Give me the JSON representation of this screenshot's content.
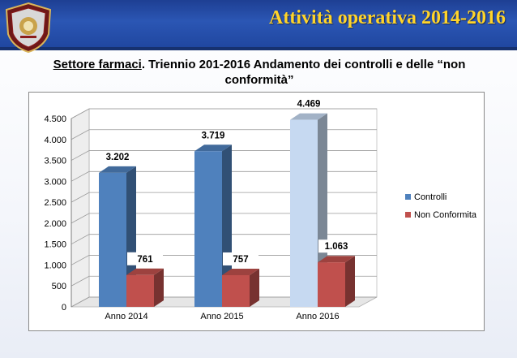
{
  "header": {
    "title": "Attività operativa 2014-2016",
    "logo_icon": "police-shield-icon"
  },
  "subtitle": {
    "underlined": "Settore farmaci",
    "rest": ".  Triennio 201-2016 Andamento dei controlli e delle “non conformità”"
  },
  "colors": {
    "header_bg": "#2547a3",
    "title_text": "#ffd42a",
    "controlli": "#4f81bd",
    "controlli_2016": "#c6d9f1",
    "non_conformita": "#c0504d"
  },
  "chart_data": {
    "type": "bar",
    "categories": [
      "Anno 2014",
      "Anno 2015",
      "Anno 2016"
    ],
    "series": [
      {
        "name": "Controlli",
        "values": [
          3202,
          3719,
          4469
        ],
        "labels": [
          "3.202",
          "3.719",
          "4.469"
        ]
      },
      {
        "name": "Non Conformita",
        "values": [
          761,
          757,
          1063
        ],
        "labels": [
          "761",
          "757",
          "1.063"
        ]
      }
    ],
    "ylim": [
      0,
      4500
    ],
    "yticks": [
      0,
      500,
      1000,
      1500,
      2000,
      2500,
      3000,
      3500,
      4000,
      4500
    ],
    "ytick_labels": [
      "0",
      "500",
      "1.000",
      "1.500",
      "2.000",
      "2.500",
      "3.000",
      "3.500",
      "4.000",
      "4.500"
    ],
    "gridlines": true,
    "three_d": true,
    "legend_position": "right"
  }
}
